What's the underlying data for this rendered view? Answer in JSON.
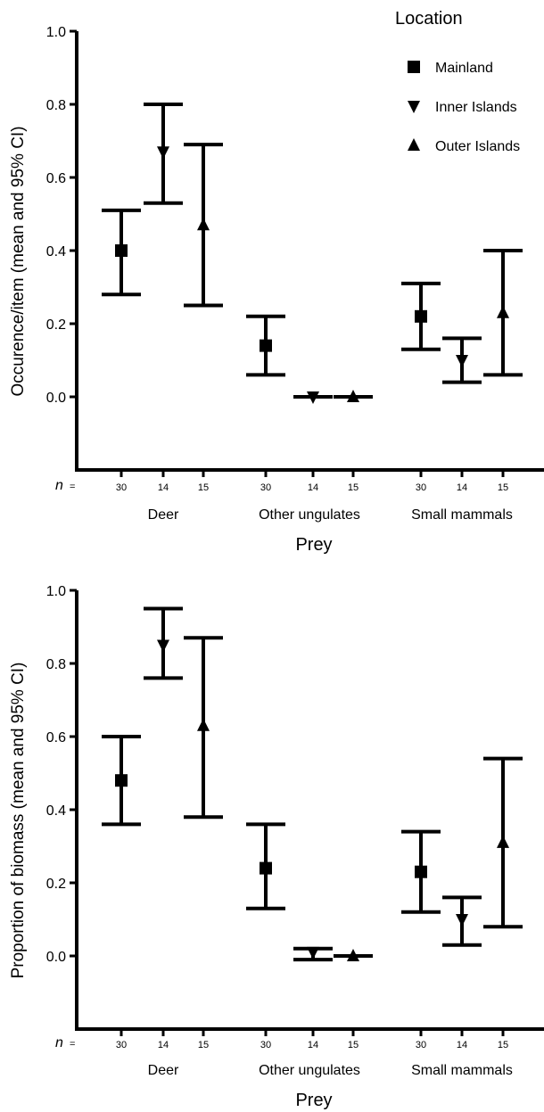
{
  "legend": {
    "title": "Location",
    "entries": [
      {
        "name": "Mainland",
        "marker": "square"
      },
      {
        "name": "Inner Islands",
        "marker": "triangle-down"
      },
      {
        "name": "Outer Islands",
        "marker": "triangle-up"
      }
    ],
    "placement": "top-right"
  },
  "chart_data": [
    {
      "type": "scatter",
      "title": "",
      "xlabel": "Prey",
      "ylabel": "Occurence/item (mean and 95% CI)",
      "ylim": [
        -0.2,
        1.0
      ],
      "yticks": [
        "1.0",
        "0.8",
        "0.6",
        "0.4",
        "0.2",
        "0.0"
      ],
      "grid": false,
      "n_label": "n",
      "categories": [
        "Deer",
        "Other ungulates",
        "Small mammals"
      ],
      "n_values": [
        [
          "30",
          "14",
          "15"
        ],
        [
          "30",
          "14",
          "15"
        ],
        [
          "30",
          "14",
          "15"
        ]
      ],
      "series": [
        {
          "name": "Mainland",
          "marker": "square",
          "mean": [
            0.4,
            0.14,
            0.22
          ],
          "ci_low": [
            0.28,
            0.06,
            0.13
          ],
          "ci_high": [
            0.51,
            0.22,
            0.31
          ]
        },
        {
          "name": "Inner Islands",
          "marker": "triangle-down",
          "mean": [
            0.67,
            0.0,
            0.1
          ],
          "ci_low": [
            0.53,
            0.0,
            0.04
          ],
          "ci_high": [
            0.8,
            0.0,
            0.16
          ]
        },
        {
          "name": "Outer Islands",
          "marker": "triangle-up",
          "mean": [
            0.47,
            0.0,
            0.23
          ],
          "ci_low": [
            0.25,
            0.0,
            0.06
          ],
          "ci_high": [
            0.69,
            0.0,
            0.4
          ]
        }
      ]
    },
    {
      "type": "scatter",
      "title": "",
      "xlabel": "Prey",
      "ylabel": "Proportion of biomass (mean and 95% CI)",
      "ylim": [
        -0.2,
        1.0
      ],
      "yticks": [
        "1.0",
        "0.8",
        "0.6",
        "0.4",
        "0.2",
        "0.0"
      ],
      "grid": false,
      "n_label": "n",
      "categories": [
        "Deer",
        "Other ungulates",
        "Small mammals"
      ],
      "n_values": [
        [
          "30",
          "14",
          "15"
        ],
        [
          "30",
          "14",
          "15"
        ],
        [
          "30",
          "14",
          "15"
        ]
      ],
      "series": [
        {
          "name": "Mainland",
          "marker": "square",
          "mean": [
            0.48,
            0.24,
            0.23
          ],
          "ci_low": [
            0.36,
            0.13,
            0.12
          ],
          "ci_high": [
            0.6,
            0.36,
            0.34
          ]
        },
        {
          "name": "Inner Islands",
          "marker": "triangle-down",
          "mean": [
            0.85,
            0.01,
            0.1
          ],
          "ci_low": [
            0.76,
            -0.01,
            0.03
          ],
          "ci_high": [
            0.95,
            0.02,
            0.16
          ]
        },
        {
          "name": "Outer Islands",
          "marker": "triangle-up",
          "mean": [
            0.63,
            0.0,
            0.31
          ],
          "ci_low": [
            0.38,
            0.0,
            0.08
          ],
          "ci_high": [
            0.87,
            0.0,
            0.54
          ]
        }
      ]
    }
  ]
}
